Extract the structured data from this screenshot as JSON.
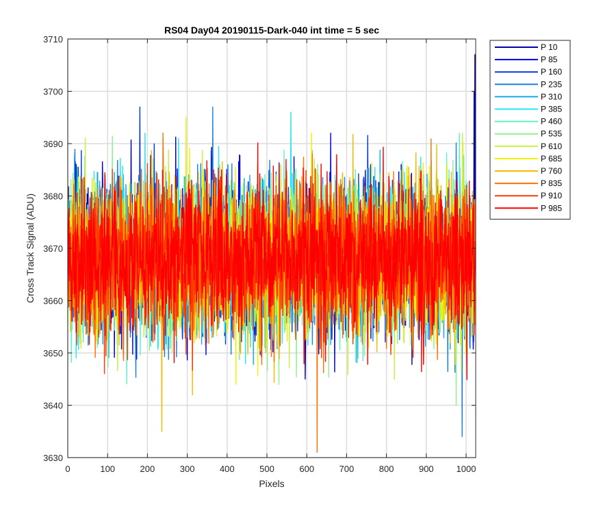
{
  "chart_data": {
    "type": "line",
    "title": "RS04 Day04 20190115-Dark-040 int time = 5 sec",
    "xlabel": "Pixels",
    "ylabel": "Cross Track Signal (ADU)",
    "xlim": [
      0,
      1024
    ],
    "ylim": [
      3630,
      3710
    ],
    "xticks": [
      0,
      100,
      200,
      300,
      400,
      500,
      600,
      700,
      800,
      900,
      1000
    ],
    "yticks": [
      3630,
      3640,
      3650,
      3660,
      3670,
      3680,
      3690,
      3700,
      3710
    ],
    "grid": true,
    "legend_position": "outside-top-right",
    "noise_model": {
      "mean": 3668,
      "std": 7,
      "n_points": 1024
    },
    "series": [
      {
        "name": "P 10",
        "color": "#0000a8"
      },
      {
        "name": "P 85",
        "color": "#0000e0"
      },
      {
        "name": "P 160",
        "color": "#0a38d8"
      },
      {
        "name": "P 235",
        "color": "#1680e0"
      },
      {
        "name": "P 310",
        "color": "#18a8e8"
      },
      {
        "name": "P 385",
        "color": "#20e8f0"
      },
      {
        "name": "P 460",
        "color": "#60f0c8"
      },
      {
        "name": "P 535",
        "color": "#90f090"
      },
      {
        "name": "P 610",
        "color": "#c8f040"
      },
      {
        "name": "P 685",
        "color": "#f0f000"
      },
      {
        "name": "P 760",
        "color": "#f8b800"
      },
      {
        "name": "P 835",
        "color": "#ff7000"
      },
      {
        "name": "P 910",
        "color": "#ff3800"
      },
      {
        "name": "P 985",
        "color": "#ff0000"
      }
    ],
    "extremes": [
      {
        "series": "P 10",
        "x": 1022,
        "y": 3707
      },
      {
        "series": "P 10",
        "x": 1020,
        "y": 3700
      },
      {
        "series": "P 160",
        "x": 181,
        "y": 3697
      },
      {
        "series": "P 235",
        "x": 364,
        "y": 3697
      },
      {
        "series": "P 385",
        "x": 560,
        "y": 3696
      },
      {
        "series": "P 685",
        "x": 297,
        "y": 3695
      },
      {
        "series": "P 235",
        "x": 990,
        "y": 3634
      },
      {
        "series": "P 760",
        "x": 236,
        "y": 3635
      },
      {
        "series": "P 835",
        "x": 626,
        "y": 3631
      },
      {
        "series": "P 535",
        "x": 975,
        "y": 3640
      },
      {
        "series": "P 760",
        "x": 313,
        "y": 3642
      }
    ]
  }
}
